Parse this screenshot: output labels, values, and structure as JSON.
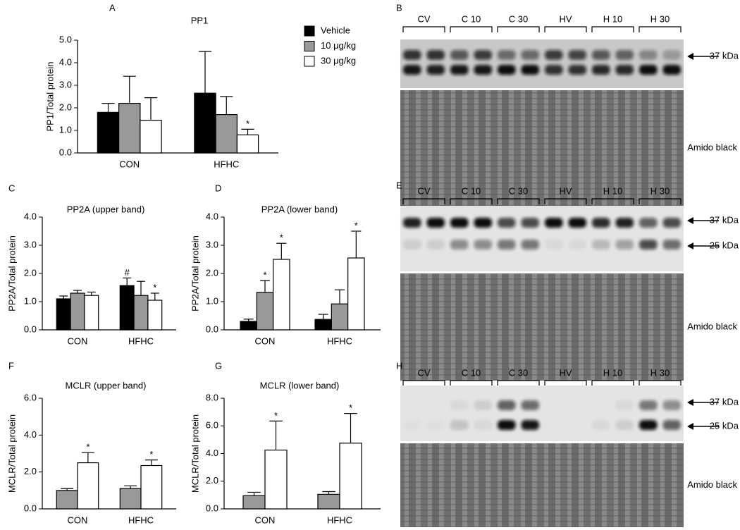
{
  "chart_data": [
    {
      "type": "bar",
      "panel": "A",
      "title": "PP1",
      "ylabel": "PP1/Total protein",
      "categories": [
        "CON",
        "HFHC"
      ],
      "ylim": [
        0,
        5
      ],
      "yticks": [
        {
          "value": 0,
          "label": "0.0"
        },
        {
          "value": 1,
          "label": "1.0"
        },
        {
          "value": 2,
          "label": "2.0"
        },
        {
          "value": 3,
          "label": "3.0"
        },
        {
          "value": 4,
          "label": "4.0"
        },
        {
          "value": 5,
          "label": "5.0"
        }
      ],
      "series": [
        {
          "name": "Vehicle",
          "color": "#000000",
          "values": [
            1.8,
            2.65
          ],
          "errors": [
            0.4,
            1.85
          ],
          "annotations": [
            null,
            null
          ]
        },
        {
          "name": "10 μg/kg",
          "color": "#999999",
          "values": [
            2.2,
            1.7
          ],
          "errors": [
            1.2,
            0.8
          ],
          "annotations": [
            null,
            null
          ]
        },
        {
          "name": "30 μg/kg",
          "color": "#ffffff",
          "values": [
            1.45,
            0.8
          ],
          "errors": [
            1.0,
            0.25
          ],
          "annotations": [
            null,
            "*"
          ]
        }
      ]
    },
    {
      "type": "bar",
      "panel": "C",
      "title": "PP2A (upper band)",
      "ylabel": "PP2A/Total protein",
      "categories": [
        "CON",
        "HFHC"
      ],
      "ylim": [
        0,
        4
      ],
      "yticks": [
        {
          "value": 0,
          "label": "0.0"
        },
        {
          "value": 1,
          "label": "1.0"
        },
        {
          "value": 2,
          "label": "2.0"
        },
        {
          "value": 3,
          "label": "3.0"
        },
        {
          "value": 4,
          "label": "4.0"
        }
      ],
      "series": [
        {
          "color": "#000000",
          "values": [
            1.1,
            1.57
          ],
          "errors": [
            0.1,
            0.27
          ],
          "annotations": [
            null,
            "#"
          ]
        },
        {
          "color": "#999999",
          "values": [
            1.3,
            1.22
          ],
          "errors": [
            0.1,
            0.5
          ],
          "annotations": [
            null,
            null
          ]
        },
        {
          "color": "#ffffff",
          "values": [
            1.22,
            1.05
          ],
          "errors": [
            0.12,
            0.25
          ],
          "annotations": [
            null,
            "*"
          ]
        }
      ]
    },
    {
      "type": "bar",
      "panel": "D",
      "title": "PP2A (lower band)",
      "ylabel": "PP2A/Total protein",
      "categories": [
        "CON",
        "HFHC"
      ],
      "ylim": [
        0,
        4
      ],
      "yticks": [
        {
          "value": 0,
          "label": "0.0"
        },
        {
          "value": 1,
          "label": "1.0"
        },
        {
          "value": 2,
          "label": "2.0"
        },
        {
          "value": 3,
          "label": "3.0"
        },
        {
          "value": 4,
          "label": "4.0"
        }
      ],
      "series": [
        {
          "color": "#000000",
          "values": [
            0.3,
            0.37
          ],
          "errors": [
            0.08,
            0.18
          ],
          "annotations": [
            null,
            null
          ]
        },
        {
          "color": "#999999",
          "values": [
            1.33,
            0.92
          ],
          "errors": [
            0.42,
            0.5
          ],
          "annotations": [
            "*",
            null
          ]
        },
        {
          "color": "#ffffff",
          "values": [
            2.5,
            2.55
          ],
          "errors": [
            0.57,
            0.95
          ],
          "annotations": [
            "*",
            "*"
          ]
        }
      ]
    },
    {
      "type": "bar",
      "panel": "F",
      "title": "MCLR (upper band)",
      "ylabel": "MCLR/Total protein",
      "categories": [
        "CON",
        "HFHC"
      ],
      "ylim": [
        0,
        6
      ],
      "yticks": [
        {
          "value": 0,
          "label": "0.0"
        },
        {
          "value": 2,
          "label": "2.0"
        },
        {
          "value": 4,
          "label": "4.0"
        },
        {
          "value": 6,
          "label": "6.0"
        }
      ],
      "series": [
        {
          "color": "#999999",
          "values": [
            1.0,
            1.1
          ],
          "errors": [
            0.1,
            0.15
          ],
          "annotations": [
            null,
            null
          ]
        },
        {
          "color": "#ffffff",
          "values": [
            2.5,
            2.35
          ],
          "errors": [
            0.55,
            0.3
          ],
          "annotations": [
            "*",
            "*"
          ]
        }
      ]
    },
    {
      "type": "bar",
      "panel": "G",
      "title": "MCLR (lower band)",
      "ylabel": "MCLR/Total protein",
      "categories": [
        "CON",
        "HFHC"
      ],
      "ylim": [
        0,
        8
      ],
      "yticks": [
        {
          "value": 0,
          "label": "0.0"
        },
        {
          "value": 2,
          "label": "2.0"
        },
        {
          "value": 4,
          "label": "4.0"
        },
        {
          "value": 6,
          "label": "6.0"
        },
        {
          "value": 8,
          "label": "8.0"
        }
      ],
      "series": [
        {
          "color": "#999999",
          "values": [
            0.95,
            1.05
          ],
          "errors": [
            0.25,
            0.2
          ],
          "annotations": [
            null,
            null
          ]
        },
        {
          "color": "#ffffff",
          "values": [
            4.25,
            4.75
          ],
          "errors": [
            2.1,
            2.15
          ],
          "annotations": [
            "*",
            "*"
          ]
        }
      ]
    }
  ],
  "blots": [
    {
      "panel": "B",
      "lanes": [
        "CV",
        "C 10",
        "C 30",
        "HV",
        "H 10",
        "H 30"
      ],
      "markers": [
        "37 kDa"
      ],
      "stain": "Amido black"
    },
    {
      "panel": "E",
      "lanes": [
        "CV",
        "C 10",
        "C 30",
        "HV",
        "H 10",
        "H 30"
      ],
      "markers": [
        "37 kDa",
        "25 kDa"
      ],
      "stain": "Amido black"
    },
    {
      "panel": "H",
      "lanes": [
        "CV",
        "C 10",
        "C 30",
        "HV",
        "H 10",
        "H 30"
      ],
      "markers": [
        "37 kDa",
        "25 kDa"
      ],
      "stain": "Amido black"
    }
  ]
}
